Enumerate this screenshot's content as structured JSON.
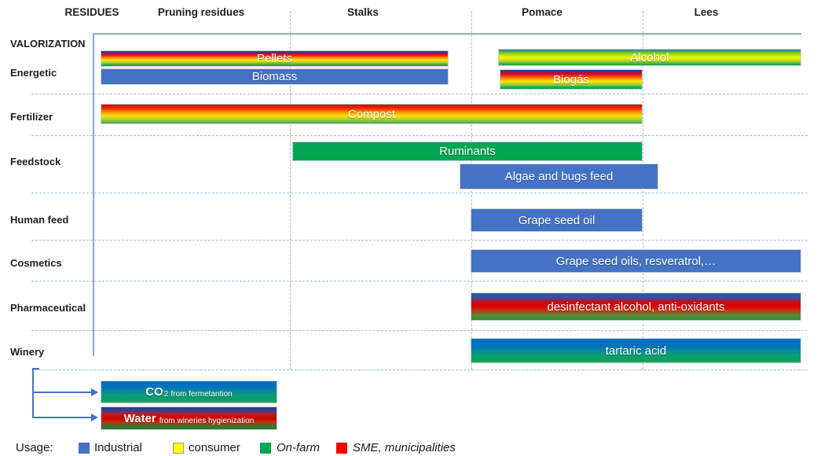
{
  "matrix": {
    "residues_axis_label": "RESIDUES",
    "valorization_axis_label": "VALORIZATION",
    "columns": [
      "Pruning residues",
      "Stalks",
      "Pomace",
      "Lees"
    ],
    "rows": [
      "Energetic",
      "Fertilizer",
      "Feedstock",
      "Human feed",
      "Cosmetics",
      "Pharmaceutical",
      "Winery"
    ],
    "bars": [
      {
        "label": "Pellets",
        "row": "Energetic",
        "columns": [
          "Pruning residues",
          "Stalks"
        ],
        "colors": [
          "#2C3E8F",
          "#E81123",
          "#FFE800",
          "#00A651"
        ]
      },
      {
        "label": "Biomass",
        "row": "Energetic",
        "columns": [
          "Pruning residues",
          "Stalks"
        ],
        "colors": [
          "#4472C4"
        ]
      },
      {
        "label": "Alcohol",
        "row": "Energetic",
        "columns": [
          "Pomace",
          "Lees"
        ],
        "colors": [
          "#2F8F96",
          "#CFE800",
          "#27A24A"
        ]
      },
      {
        "label": "Biogás",
        "row": "Energetic",
        "columns": [
          "Pomace"
        ],
        "colors": [
          "#2C3E8F",
          "#E81123",
          "#FFE800",
          "#00A651"
        ]
      },
      {
        "label": "Compost",
        "row": "Fertilizer",
        "columns": [
          "Pruning residues",
          "Stalks",
          "Pomace"
        ],
        "colors": [
          "#CF0000",
          "#FFE000",
          "#3FAE49"
        ]
      },
      {
        "label": "Ruminants",
        "row": "Feedstock",
        "columns": [
          "Stalks",
          "Pomace"
        ],
        "colors": [
          "#00A651"
        ]
      },
      {
        "label": "Algae and bugs feed",
        "row": "Feedstock",
        "columns": [
          "Stalks",
          "Pomace"
        ],
        "colors": [
          "#4472C4"
        ]
      },
      {
        "label": "Grape seed oil",
        "row": "Human feed",
        "columns": [
          "Pomace"
        ],
        "colors": [
          "#4472C4"
        ]
      },
      {
        "label": "Grape seed oils, resveratrol,…",
        "row": "Cosmetics",
        "columns": [
          "Pomace",
          "Lees"
        ],
        "colors": [
          "#4472C4"
        ]
      },
      {
        "label": "desinfectant alcohol, anti-oxidants",
        "row": "Pharmaceutical",
        "columns": [
          "Pomace",
          "Lees"
        ],
        "colors": [
          "#2E55A5",
          "#DD0000",
          "#2F8A3C"
        ]
      },
      {
        "label": "tartaric acid",
        "row": "Winery",
        "columns": [
          "Pomace",
          "Lees"
        ],
        "colors": [
          "#0070C0",
          "#00A651"
        ]
      }
    ]
  },
  "byproducts": {
    "co2": {
      "formula_base": "CO",
      "formula_subscript": "2",
      "note": "from fermetantion",
      "colors": [
        "#0070C0",
        "#00A651"
      ]
    },
    "water": {
      "title": "Water",
      "note": "from wineries hygienization",
      "colors": [
        "#2B3F96",
        "#D40000",
        "#2F7A33"
      ]
    }
  },
  "legend": {
    "title": "Usage:",
    "items": [
      {
        "label": "Industrial",
        "color": "#4472C4",
        "italic": false
      },
      {
        "label": "consumer",
        "color": "#FFFF00",
        "italic": false
      },
      {
        "label": "On-farm",
        "color": "#00A651",
        "italic": true
      },
      {
        "label": "SME, municipalities",
        "color": "#FF0000",
        "italic": true
      }
    ]
  }
}
